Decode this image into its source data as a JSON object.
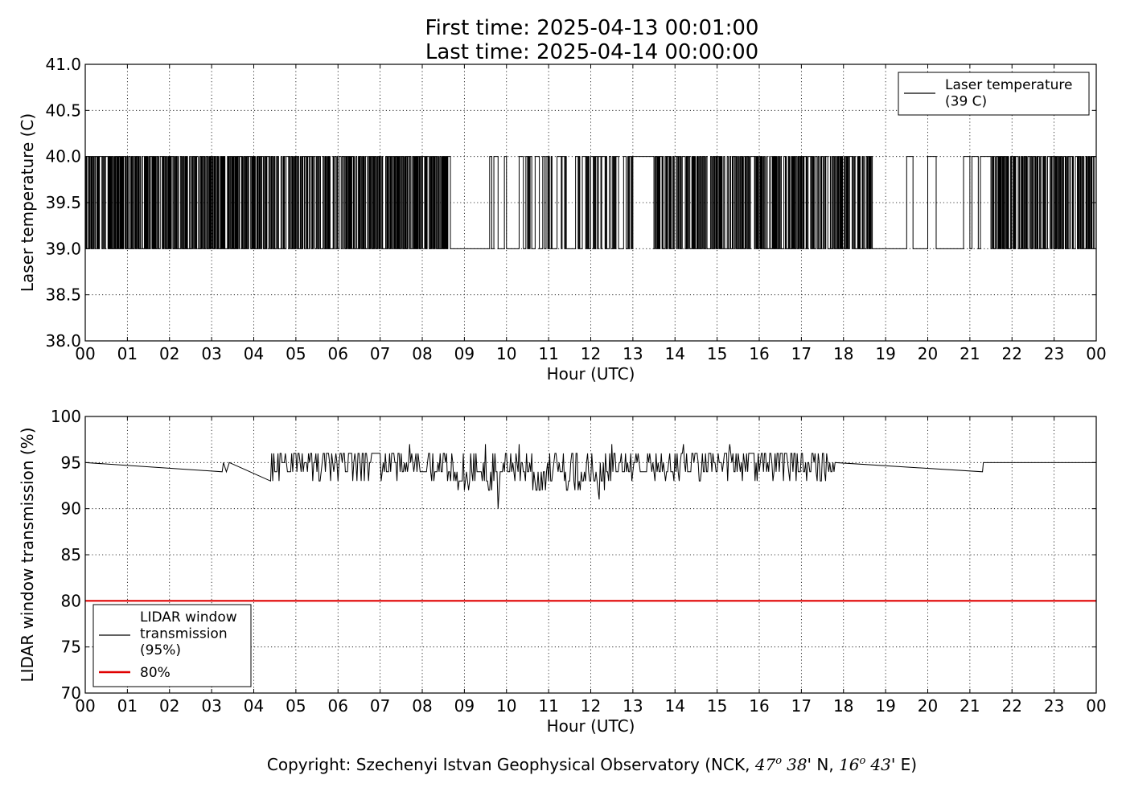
{
  "title_line1": "First time: 2025-04-13 00:01:00",
  "title_line2": "Last time: 2025-04-14 00:00:00",
  "footer": {
    "prefix": "Copyright: Szechenyi Istvan Geophysical Observatory (NCK, ",
    "lat_deg": "47",
    "deg_mark": "o",
    "lat_min": "38",
    "lat_suffix": "' N, ",
    "lon_deg": "16",
    "lon_min": "43",
    "lon_suffix": "' E)"
  },
  "colors": {
    "series": "#000000",
    "threshold": "#e00000",
    "grid": "#000000",
    "background": "#ffffff"
  },
  "chart_data": [
    {
      "type": "line",
      "xlabel": "Hour (UTC)",
      "ylabel": "Laser temperature (C)",
      "xlim": [
        0,
        24
      ],
      "ylim": [
        38.0,
        41.0
      ],
      "x_tick_labels": [
        "00",
        "01",
        "02",
        "03",
        "04",
        "05",
        "06",
        "07",
        "08",
        "09",
        "10",
        "11",
        "12",
        "13",
        "14",
        "15",
        "16",
        "17",
        "18",
        "19",
        "20",
        "21",
        "22",
        "23",
        "00"
      ],
      "y_tick_labels": [
        "38.0",
        "38.5",
        "39.0",
        "39.5",
        "40.0",
        "40.5",
        "41.0"
      ],
      "grid": true,
      "legend_position": "top-right",
      "series": [
        {
          "name": "Laser temperature\n(39 C)",
          "legend_lines": [
            "Laser temperature",
            "(39 C)"
          ],
          "values_levels": [
            39.0,
            40.0
          ],
          "segments": [
            {
              "x": [
                0.0,
                1.6
              ],
              "pattern": "dense",
              "seed": 11
            },
            {
              "x": [
                1.6,
                8.7
              ],
              "pattern": "dense",
              "seed": 21
            },
            {
              "x": [
                8.7,
                9.6
              ],
              "pattern": "flat",
              "value": 39.0
            },
            {
              "x": [
                9.6,
                10.4
              ],
              "pattern": "sparse",
              "seed": 31
            },
            {
              "x": [
                10.4,
                13.0
              ],
              "pattern": "medium",
              "seed": 41
            },
            {
              "x": [
                13.0,
                13.5
              ],
              "pattern": "sparse",
              "seed": 51
            },
            {
              "x": [
                13.5,
                18.7
              ],
              "pattern": "dense",
              "seed": 61
            },
            {
              "x": [
                18.7,
                19.5
              ],
              "pattern": "flat",
              "value": 39.0
            },
            {
              "x": [
                19.5,
                21.5
              ],
              "pattern": "sparse",
              "seed": 71
            },
            {
              "x": [
                21.5,
                24.0
              ],
              "pattern": "dense",
              "seed": 81
            }
          ]
        }
      ]
    },
    {
      "type": "line",
      "xlabel": "Hour (UTC)",
      "ylabel": "LIDAR window transmission (%)",
      "xlim": [
        0,
        24
      ],
      "ylim": [
        70,
        100
      ],
      "x_tick_labels": [
        "00",
        "01",
        "02",
        "03",
        "04",
        "05",
        "06",
        "07",
        "08",
        "09",
        "10",
        "11",
        "12",
        "13",
        "14",
        "15",
        "16",
        "17",
        "18",
        "19",
        "20",
        "21",
        "22",
        "23",
        "00"
      ],
      "y_tick_labels": [
        "70",
        "75",
        "80",
        "85",
        "90",
        "95",
        "100"
      ],
      "grid": true,
      "legend_position": "bottom-left",
      "series": [
        {
          "name": "LIDAR window\ntransmission\n(95%)",
          "legend_lines": [
            "LIDAR window",
            "transmission",
            "(95%)"
          ],
          "baseline": 95,
          "dips": [
            [
              3.25,
              94
            ],
            [
              3.28,
              95
            ],
            [
              3.35,
              94
            ],
            [
              3.42,
              95
            ],
            [
              21.3,
              94
            ],
            [
              21.32,
              95
            ]
          ],
          "noisy_window": [
            4.4,
            17.8
          ],
          "noise_extremes": [
            [
              9.8,
              90
            ],
            [
              12.2,
              91
            ],
            [
              9.1,
              92
            ],
            [
              7.7,
              97
            ],
            [
              9.5,
              97
            ],
            [
              10.3,
              97
            ],
            [
              12.5,
              97
            ],
            [
              14.2,
              97
            ],
            [
              15.3,
              97
            ]
          ]
        },
        {
          "name": "80%",
          "legend_lines": [
            "80%"
          ],
          "constant": 80
        }
      ]
    }
  ]
}
